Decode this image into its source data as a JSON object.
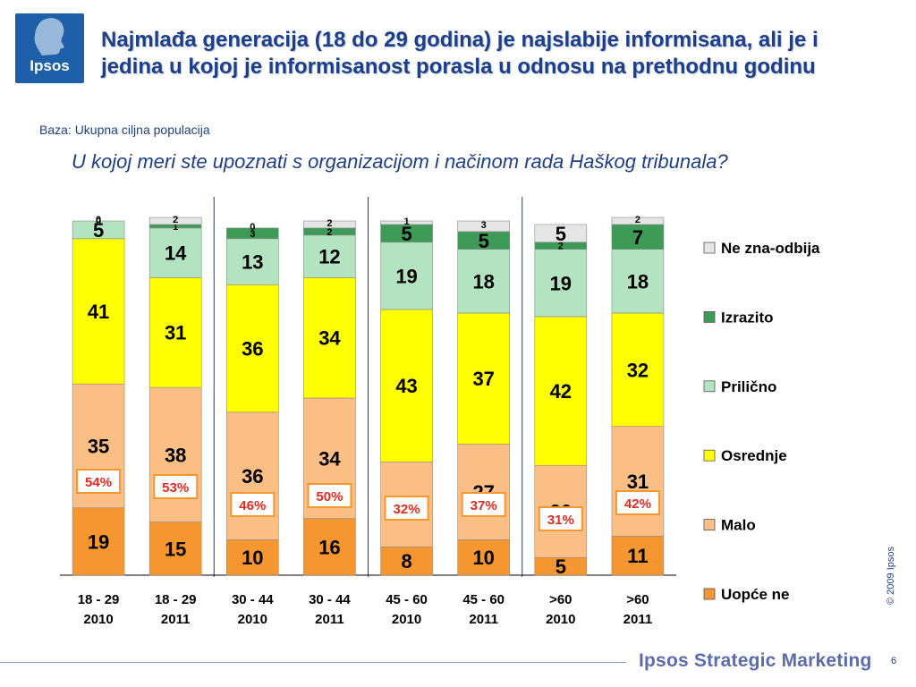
{
  "logo": {
    "text": "Ipsos",
    "color": "#1d5fa8"
  },
  "title": "Najmlađa generacija (18 do 29 godina) je najslabije informisana, ali je i jedina u kojoj je informisanost porasla u odnosu na prethodnu godinu",
  "subtitle": "Baza: Ukupna ciljna populacija",
  "question": "U kojoj meri ste upoznati s organizacijom i načinom rada Haškog tribunala?",
  "chart_data": {
    "type": "bar",
    "stacked": true,
    "title": "",
    "xlabel": "",
    "ylabel": "",
    "ylim": [
      0,
      100
    ],
    "grid": false,
    "legend_position": "right",
    "categories": [
      [
        "18 - 29",
        "2010"
      ],
      [
        "18 - 29",
        "2011"
      ],
      [
        "30 - 44",
        "2010"
      ],
      [
        "30 - 44",
        "2011"
      ],
      [
        "45 - 60",
        "2010"
      ],
      [
        "45 - 60",
        "2011"
      ],
      [
        ">60",
        "2010"
      ],
      [
        ">60",
        "2011"
      ]
    ],
    "series": [
      {
        "name": "Uopće ne",
        "color": "#f59631",
        "values": [
          19,
          15,
          10,
          16,
          8,
          10,
          5,
          11
        ]
      },
      {
        "name": "Malo",
        "color": "#fbbf86",
        "values": [
          35,
          38,
          36,
          34,
          24,
          27,
          26,
          31
        ]
      },
      {
        "name": "Osrednje",
        "color": "#ffff00",
        "values": [
          41,
          31,
          36,
          34,
          43,
          37,
          42,
          32
        ]
      },
      {
        "name": "Prilično",
        "color": "#b3e3c1",
        "values": [
          5,
          14,
          13,
          12,
          19,
          18,
          19,
          18
        ]
      },
      {
        "name": "Izrazito",
        "color": "#3e9b57",
        "values": [
          0,
          1,
          3,
          2,
          5,
          5,
          2,
          7
        ]
      },
      {
        "name": "Ne zna-odbija",
        "color": "#e5e5e5",
        "values": [
          0,
          2,
          0,
          2,
          1,
          3,
          5,
          2
        ]
      }
    ],
    "group_totals": [
      "54%",
      "53%",
      "46%",
      "50%",
      "32%",
      "37%",
      "31%",
      "42%"
    ],
    "group_total_color": "#e8281e"
  },
  "footer": {
    "watermark": "© 2009 Ipsos",
    "brand": "Ipsos Strategic Marketing",
    "page": "6"
  }
}
